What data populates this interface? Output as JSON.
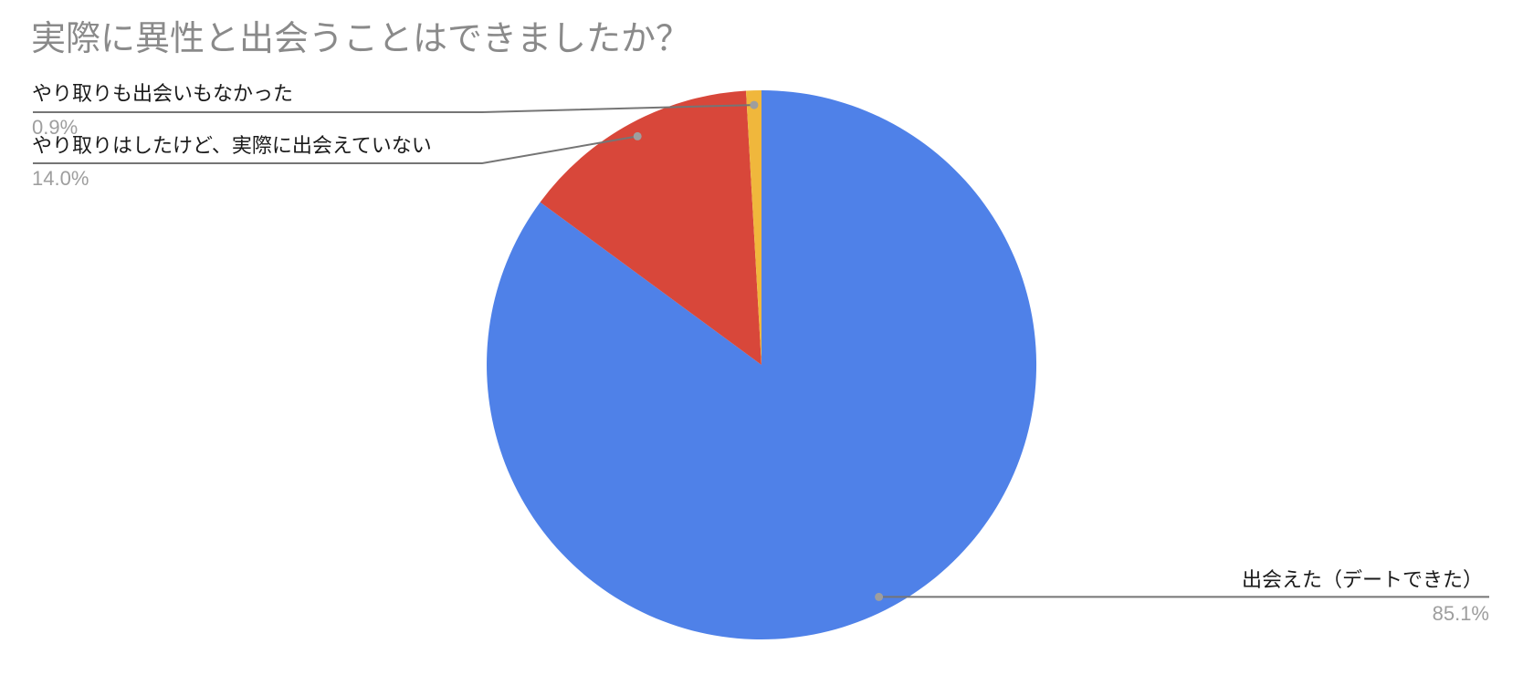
{
  "chart_data": {
    "type": "pie",
    "title": "実際に異性と出会うことはできましたか？",
    "legend_position": "labeled-callouts",
    "direction": "clockwise",
    "start_angle_deg": 0,
    "total_percent": 100,
    "slices": [
      {
        "label": "出会えた（デートできた）",
        "value": 85.1,
        "percent_label": "85.1%",
        "color": "#4f81e8"
      },
      {
        "label": "やり取りはしたけど、実際に出会えていない",
        "value": 14.0,
        "percent_label": "14.0%",
        "color": "#d8473a"
      },
      {
        "label": "やり取りも出会いもなかった",
        "value": 0.9,
        "percent_label": "0.9%",
        "color": "#f0b73c"
      }
    ]
  },
  "colors": {
    "background": "#ffffff",
    "title_text": "#8a8a8a",
    "label_text": "#1a1a1a",
    "percent_text": "#9e9e9e",
    "leader_line": "#757575",
    "leader_dot": "#9e9e9e"
  }
}
